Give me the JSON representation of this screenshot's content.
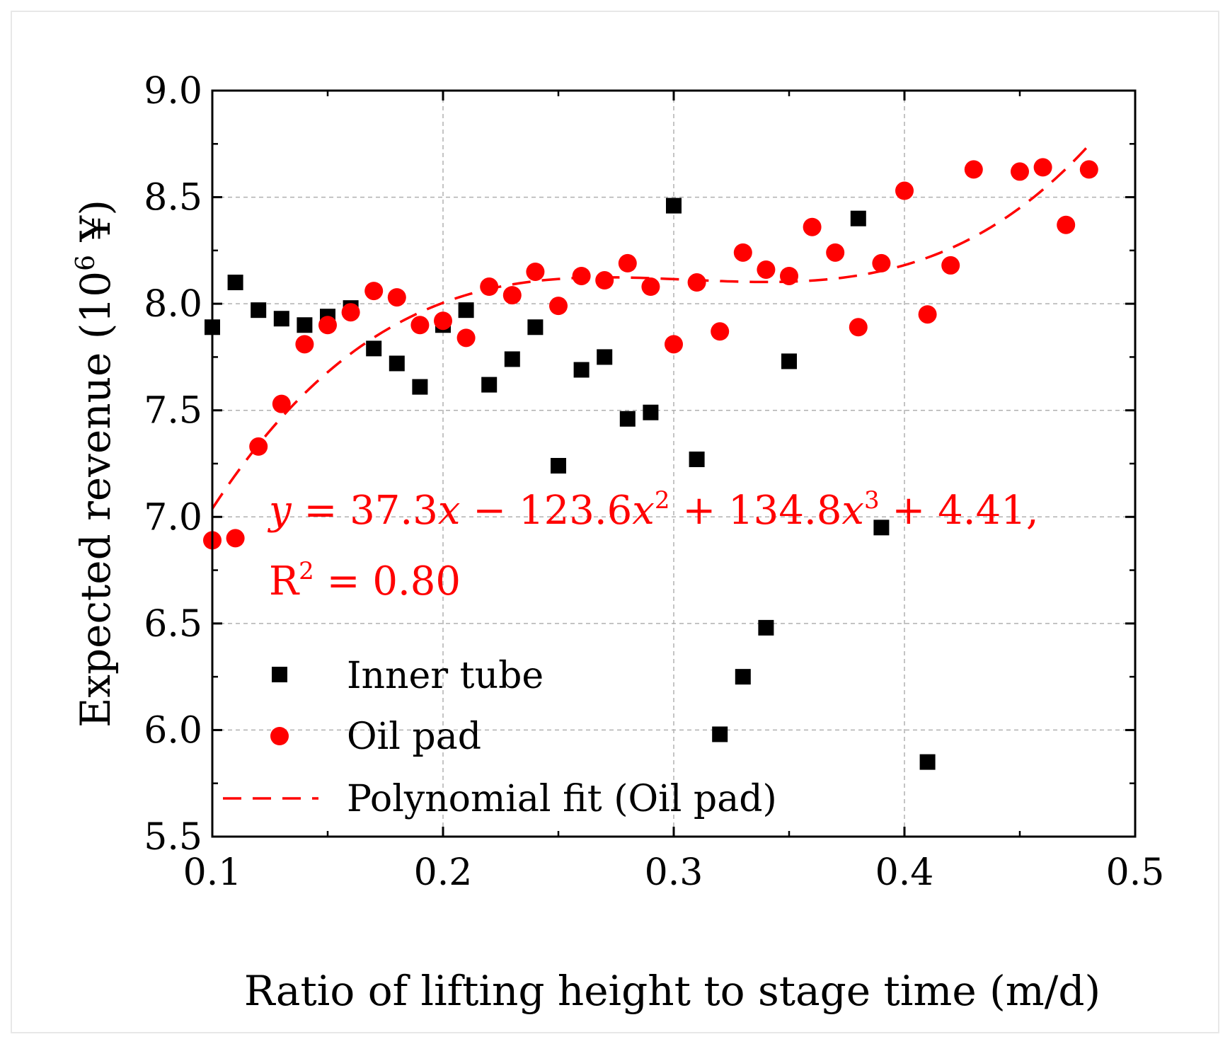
{
  "chart_data": {
    "type": "scatter",
    "xlabel": "Ratio of lifting height to stage time (m/d)",
    "ylabel_main": "Expected revenue (10",
    "ylabel_sup": "6",
    "ylabel_tail": " ¥)",
    "xlim": [
      0.1,
      0.5
    ],
    "ylim": [
      5.5,
      9.0
    ],
    "xticks": [
      0.1,
      0.2,
      0.3,
      0.4,
      0.5
    ],
    "xtick_labels": [
      "0.1",
      "0.2",
      "0.3",
      "0.4",
      "0.5"
    ],
    "yticks": [
      5.5,
      6.0,
      6.5,
      7.0,
      7.5,
      8.0,
      8.5,
      9.0
    ],
    "ytick_labels": [
      "5.5",
      "6.0",
      "6.5",
      "7.0",
      "7.5",
      "8.0",
      "8.5",
      "9.0"
    ],
    "grid": true,
    "legend_position": "bottom-left",
    "series": [
      {
        "name": "Inner tube",
        "marker": "square",
        "color": "#000000",
        "points": [
          [
            0.1,
            7.89
          ],
          [
            0.11,
            8.1
          ],
          [
            0.12,
            7.97
          ],
          [
            0.13,
            7.93
          ],
          [
            0.14,
            7.9
          ],
          [
            0.15,
            7.94
          ],
          [
            0.16,
            7.98
          ],
          [
            0.17,
            7.79
          ],
          [
            0.18,
            7.72
          ],
          [
            0.19,
            7.61
          ],
          [
            0.2,
            7.9
          ],
          [
            0.21,
            7.97
          ],
          [
            0.22,
            7.62
          ],
          [
            0.23,
            7.74
          ],
          [
            0.24,
            7.89
          ],
          [
            0.25,
            7.24
          ],
          [
            0.26,
            7.69
          ],
          [
            0.27,
            7.75
          ],
          [
            0.28,
            7.46
          ],
          [
            0.29,
            7.49
          ],
          [
            0.3,
            8.46
          ],
          [
            0.31,
            7.27
          ],
          [
            0.32,
            5.98
          ],
          [
            0.33,
            6.25
          ],
          [
            0.34,
            6.48
          ],
          [
            0.35,
            7.73
          ],
          [
            0.38,
            8.4
          ],
          [
            0.39,
            6.95
          ],
          [
            0.41,
            5.85
          ]
        ]
      },
      {
        "name": "Oil pad",
        "marker": "circle",
        "color": "#ff0000",
        "points": [
          [
            0.1,
            6.89
          ],
          [
            0.11,
            6.9
          ],
          [
            0.12,
            7.33
          ],
          [
            0.13,
            7.53
          ],
          [
            0.14,
            7.81
          ],
          [
            0.15,
            7.9
          ],
          [
            0.16,
            7.96
          ],
          [
            0.17,
            8.06
          ],
          [
            0.18,
            8.03
          ],
          [
            0.19,
            7.9
          ],
          [
            0.2,
            7.92
          ],
          [
            0.21,
            7.84
          ],
          [
            0.22,
            8.08
          ],
          [
            0.23,
            8.04
          ],
          [
            0.24,
            8.15
          ],
          [
            0.25,
            7.99
          ],
          [
            0.26,
            8.13
          ],
          [
            0.27,
            8.11
          ],
          [
            0.28,
            8.19
          ],
          [
            0.29,
            8.08
          ],
          [
            0.3,
            7.81
          ],
          [
            0.31,
            8.1
          ],
          [
            0.32,
            7.87
          ],
          [
            0.33,
            8.24
          ],
          [
            0.34,
            8.16
          ],
          [
            0.35,
            8.13
          ],
          [
            0.36,
            8.36
          ],
          [
            0.37,
            8.24
          ],
          [
            0.38,
            7.89
          ],
          [
            0.39,
            8.19
          ],
          [
            0.4,
            8.53
          ],
          [
            0.41,
            7.95
          ],
          [
            0.42,
            8.18
          ],
          [
            0.43,
            8.63
          ],
          [
            0.45,
            8.62
          ],
          [
            0.46,
            8.64
          ],
          [
            0.47,
            8.37
          ],
          [
            0.48,
            8.63
          ]
        ]
      }
    ],
    "fit": {
      "name": "Polynomial fit (Oil pad)",
      "color": "#ff0000",
      "style": "dashed",
      "coefficients": {
        "c0": 4.41,
        "c1": 37.3,
        "c2": -123.6,
        "c3": 134.8
      },
      "x_range": [
        0.1,
        0.48
      ]
    },
    "annotation": {
      "equation_y": "y",
      "equation_part1": " = 37.3",
      "equation_x1": "x",
      "equation_part2": " − 123.6",
      "equation_x2": "x",
      "equation_sup2": "2",
      "equation_part3": " + 134.8",
      "equation_x3": "x",
      "equation_sup3": "3",
      "equation_part4": " + 4.41,",
      "r2_R": "R",
      "r2_sup": "2",
      "r2_value": " = 0.80"
    },
    "legend": {
      "inner_tube": "Inner tube",
      "oil_pad": "Oil pad",
      "fit": "Polynomial fit (Oil pad)"
    }
  }
}
